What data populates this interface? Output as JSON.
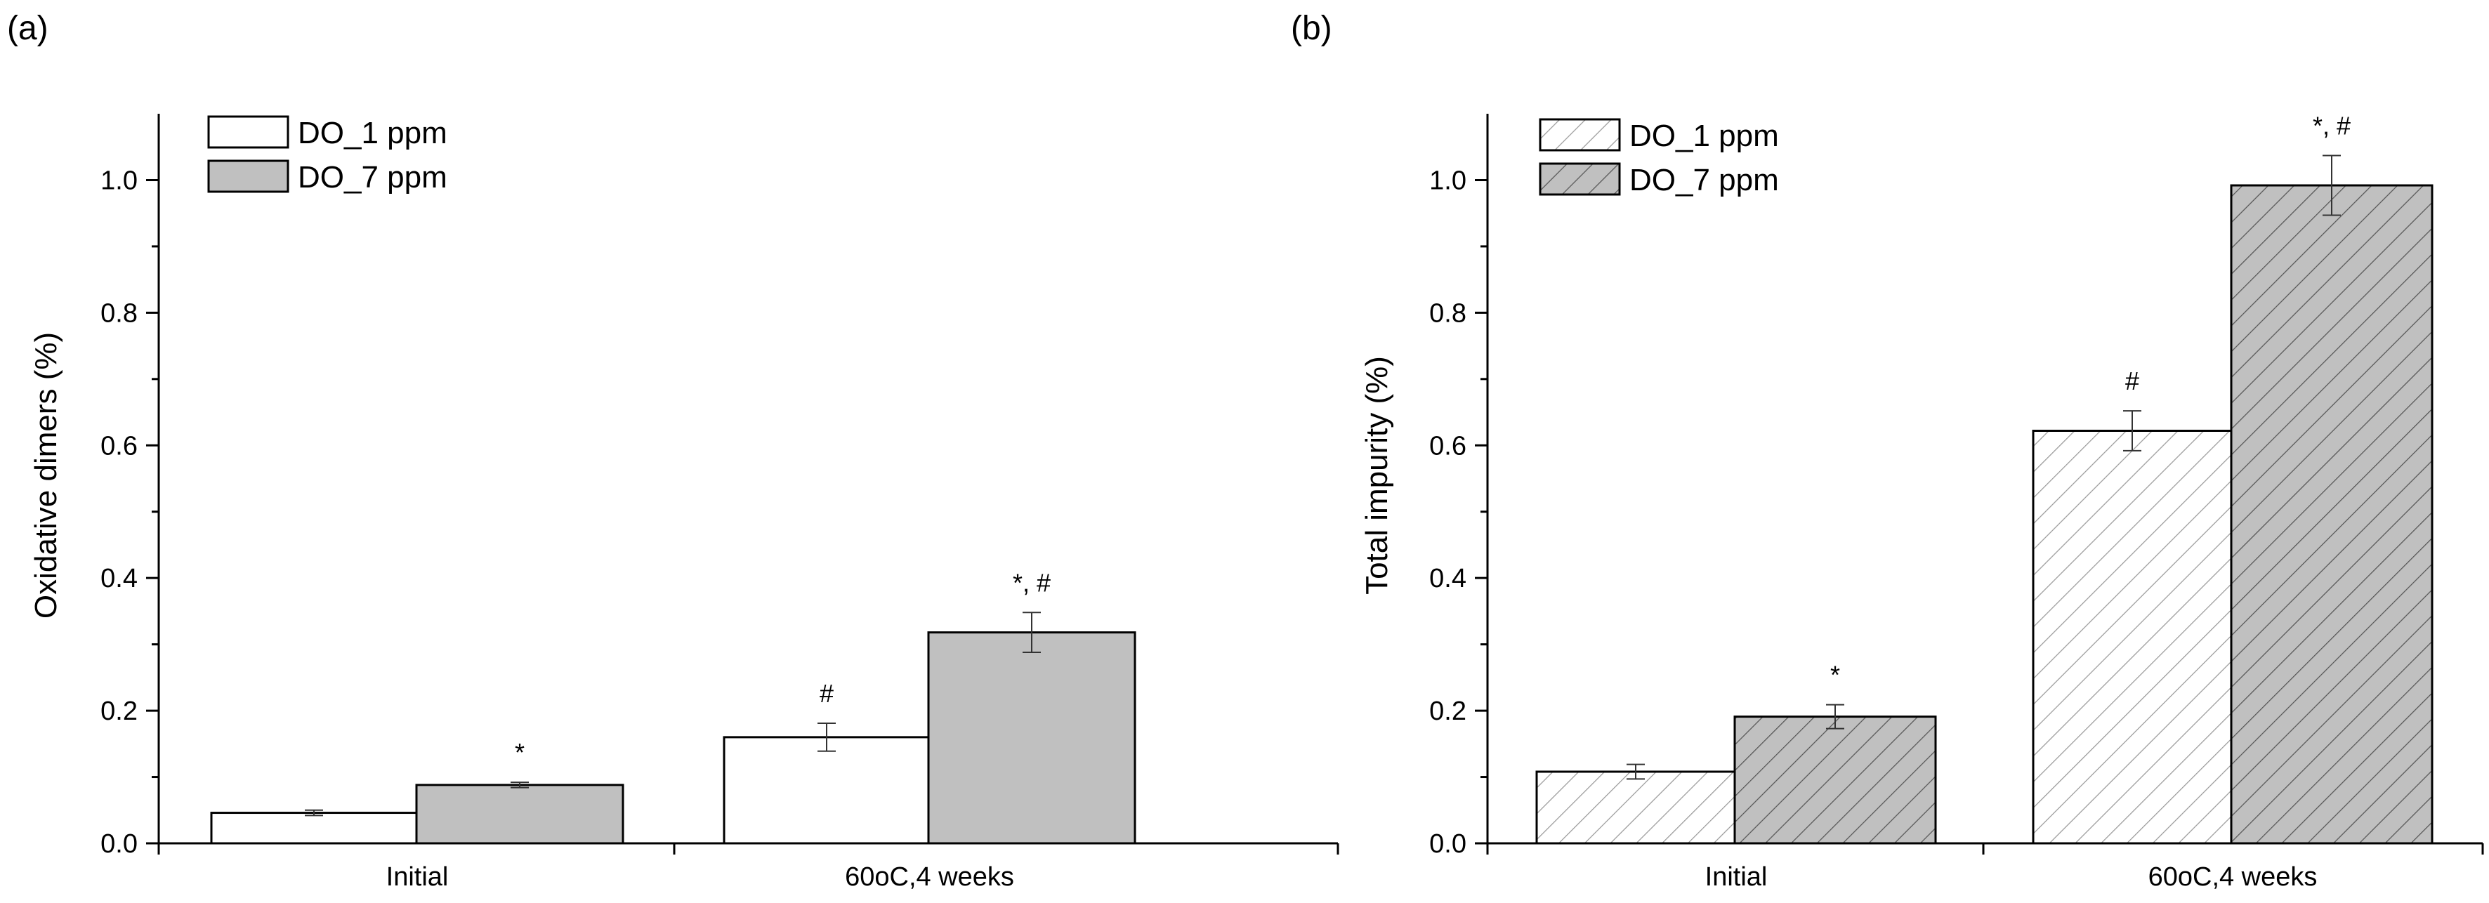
{
  "chart_data": [
    {
      "panel_label": "(a)",
      "type": "bar",
      "fill_style": "solid",
      "title": "",
      "xlabel": "",
      "ylabel": "Oxidative dimers (%)",
      "ylim": [
        0,
        1.1
      ],
      "yticks": [
        0.0,
        0.2,
        0.4,
        0.6,
        0.8,
        1.0
      ],
      "ytick_labels": [
        "0.0",
        "0.2",
        "0.4",
        "0.6",
        "0.8",
        "1.0"
      ],
      "grid": false,
      "legend_position": "top-left",
      "categories": [
        "Initial",
        "60oC,4 weeks"
      ],
      "series": [
        {
          "name": "DO_1 ppm",
          "values": [
            0.046,
            0.16
          ],
          "errors": [
            0.004,
            0.021
          ],
          "annotations": [
            "",
            "#"
          ],
          "color": "#ffffff"
        },
        {
          "name": "DO_7 ppm",
          "values": [
            0.088,
            0.318
          ],
          "errors": [
            0.004,
            0.03
          ],
          "annotations": [
            "*",
            "*, #"
          ],
          "color": "#c0c0c0"
        }
      ]
    },
    {
      "panel_label": "(b)",
      "type": "bar",
      "fill_style": "hatched",
      "title": "",
      "xlabel": "",
      "ylabel": "Total impurity (%)",
      "ylim": [
        0,
        1.1
      ],
      "yticks": [
        0.0,
        0.2,
        0.4,
        0.6,
        0.8,
        1.0
      ],
      "ytick_labels": [
        "0.0",
        "0.2",
        "0.4",
        "0.6",
        "0.8",
        "1.0"
      ],
      "grid": false,
      "legend_position": "top-left",
      "categories": [
        "Initial",
        "60oC,4 weeks"
      ],
      "series": [
        {
          "name": "DO_1 ppm",
          "values": [
            0.108,
            0.622
          ],
          "errors": [
            0.011,
            0.03
          ],
          "annotations": [
            "",
            "#"
          ],
          "color": "#ffffff"
        },
        {
          "name": "DO_7 ppm",
          "values": [
            0.191,
            0.992
          ],
          "errors": [
            0.018,
            0.045
          ],
          "annotations": [
            "*",
            "*, #"
          ],
          "color": "#c0c0c0"
        }
      ]
    }
  ]
}
